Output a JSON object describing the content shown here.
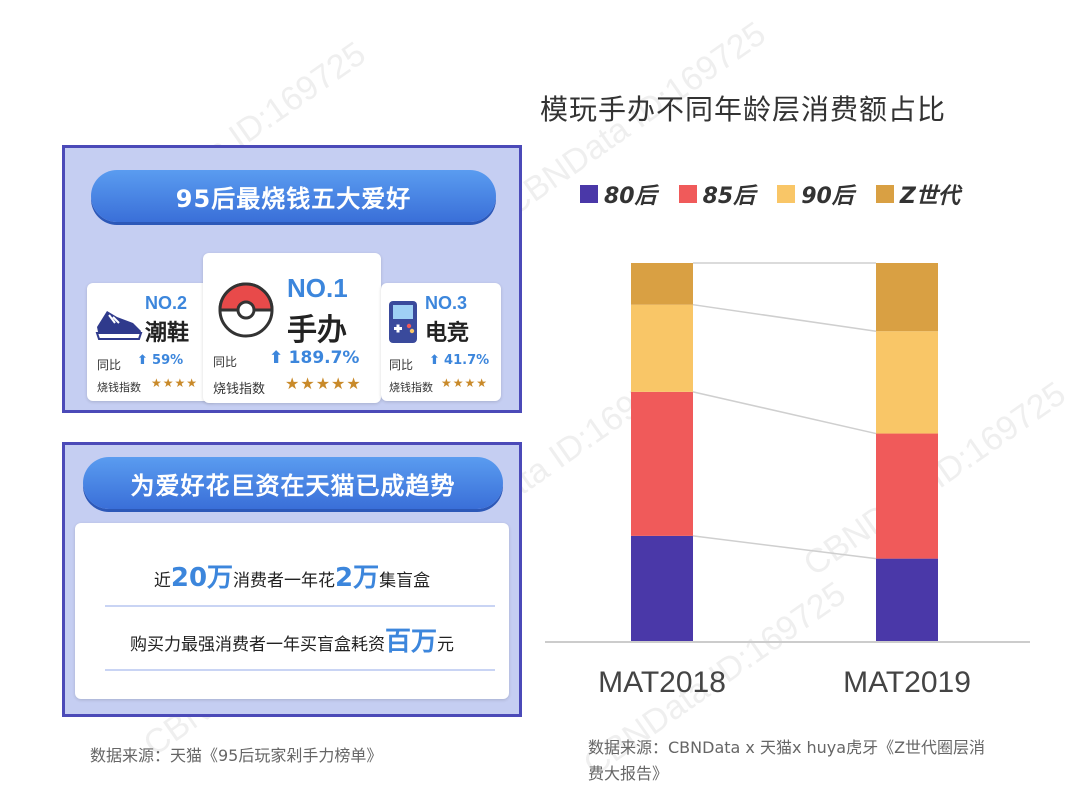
{
  "left": {
    "top_panel_title": "95后最烧钱五大爱好",
    "items": [
      {
        "rank": "NO.2",
        "name": "潮鞋",
        "yoy_label": "同比",
        "yoy_value": "59%",
        "index_label": "烧钱指数",
        "stars": "★★★★"
      },
      {
        "rank": "NO.1",
        "name": "手办",
        "yoy_label": "同比",
        "yoy_value": "189.7%",
        "index_label": "烧钱指数",
        "stars": "★★★★★"
      },
      {
        "rank": "NO.3",
        "name": "电竞",
        "yoy_label": "同比",
        "yoy_value": "41.7%",
        "index_label": "烧钱指数",
        "stars": "★★★★"
      }
    ],
    "bottom_panel_title": "为爱好花巨资在天猫已成趋势",
    "line1": {
      "pre": "近",
      "hl1": "20万",
      "mid": "消费者一年花",
      "hl2": "2万",
      "post": "集盲盒"
    },
    "line2": {
      "pre": "购买力最强消费者一年买盲盒耗资",
      "hl": "百万",
      "post": "元"
    },
    "source": "数据来源：天猫《95后玩家剁手力榜单》"
  },
  "watermark": "CBNData ID:169725",
  "chart_data": {
    "type": "bar",
    "stacked": true,
    "title": "模玩手办不同年龄层消费额占比",
    "categories": [
      "MAT2018",
      "MAT2019"
    ],
    "series": [
      {
        "name": "80后",
        "color": "#4a38a8",
        "values": [
          28,
          22
        ]
      },
      {
        "name": "85后",
        "color": "#f05a5a",
        "values": [
          38,
          33
        ]
      },
      {
        "name": "90后",
        "color": "#f9c667",
        "values": [
          23,
          27
        ]
      },
      {
        "name": "Z世代",
        "color": "#d9a043",
        "values": [
          11,
          18
        ]
      }
    ],
    "ylim": [
      0,
      100
    ],
    "legend_position": "top",
    "grid": false
  },
  "chart_source": "数据来源：CBNData x 天猫x huya虎牙《Z世代圈层消费大报告》"
}
